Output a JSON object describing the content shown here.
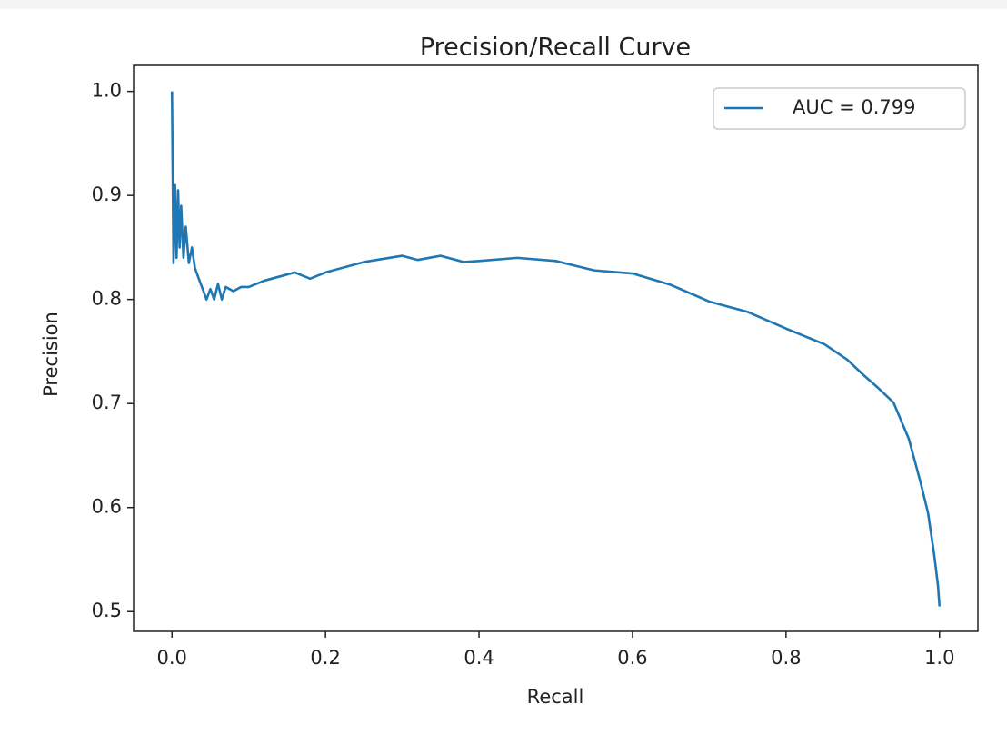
{
  "chart_data": {
    "type": "line",
    "title": "Precision/Recall Curve",
    "xlabel": "Recall",
    "ylabel": "Precision",
    "x": [
      0,
      0.002,
      0.004,
      0.006,
      0.008,
      0.01,
      0.012,
      0.015,
      0.018,
      0.022,
      0.026,
      0.03,
      0.035,
      0.04,
      0.045,
      0.05,
      0.055,
      0.06,
      0.065,
      0.07,
      0.08,
      0.09,
      0.1,
      0.12,
      0.15,
      0.16,
      0.18,
      0.2,
      0.25,
      0.3,
      0.32,
      0.35,
      0.38,
      0.4,
      0.45,
      0.5,
      0.55,
      0.6,
      0.65,
      0.7,
      0.75,
      0.8,
      0.85,
      0.88,
      0.9,
      0.92,
      0.94,
      0.96,
      0.975,
      0.985,
      0.993,
      0.998,
      1.0
    ],
    "series": [
      {
        "name": "AUC = 0.799",
        "color": "#1f77b4",
        "values": [
          1.0,
          0.835,
          0.91,
          0.84,
          0.905,
          0.85,
          0.89,
          0.84,
          0.87,
          0.835,
          0.85,
          0.83,
          0.82,
          0.81,
          0.8,
          0.81,
          0.8,
          0.815,
          0.8,
          0.812,
          0.808,
          0.812,
          0.812,
          0.818,
          0.824,
          0.826,
          0.82,
          0.826,
          0.836,
          0.842,
          0.838,
          0.842,
          0.836,
          0.837,
          0.84,
          0.837,
          0.828,
          0.825,
          0.814,
          0.798,
          0.788,
          0.772,
          0.757,
          0.742,
          0.728,
          0.715,
          0.701,
          0.666,
          0.625,
          0.595,
          0.555,
          0.525,
          0.505
        ]
      }
    ],
    "xlim": [
      -0.05,
      1.05
    ],
    "ylim": [
      0.481,
      1.025
    ],
    "xticks": [
      {
        "value": 0,
        "label": "0.0"
      },
      0.2,
      0.4,
      0.6,
      0.8,
      {
        "value": 1,
        "label": "1.0"
      }
    ],
    "yticks": [
      0.5,
      0.6,
      0.7,
      0.8,
      0.9,
      {
        "value": 1,
        "label": "1.0"
      }
    ],
    "legend": "upper right",
    "grid": false
  }
}
